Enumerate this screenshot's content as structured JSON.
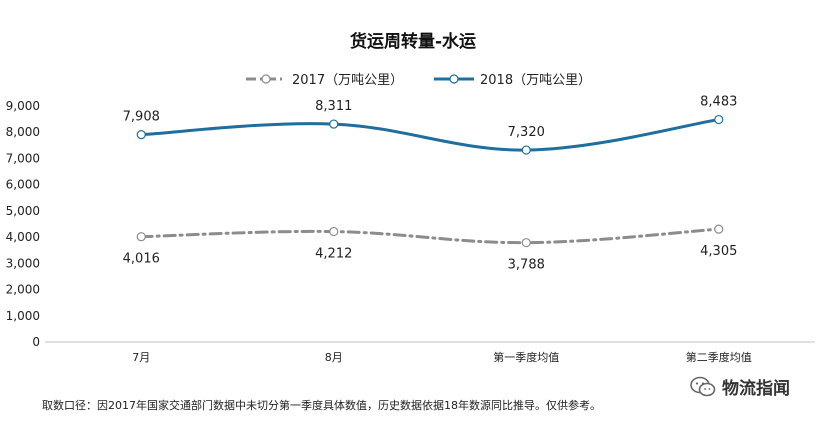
{
  "chart_data": {
    "type": "line",
    "title": "货运周转量-水运",
    "categories": [
      "7月",
      "8月",
      "第一季度均值",
      "第二季度均值"
    ],
    "series": [
      {
        "name": "2017（万吨公里）",
        "values": [
          4016,
          4212,
          3788,
          4305
        ],
        "color": "#8c8c8c",
        "style": "dash-dot",
        "labels": [
          "4,016",
          "4,212",
          "3,788",
          "4,305"
        ]
      },
      {
        "name": "2018（万吨公里）",
        "values": [
          7908,
          8311,
          7320,
          8483
        ],
        "color": "#1f6f9e",
        "style": "solid",
        "labels": [
          "7,908",
          "8,311",
          "7,320",
          "8,483"
        ]
      }
    ],
    "yticks": [
      "0",
      "1,000",
      "2,000",
      "3,000",
      "4,000",
      "5,000",
      "6,000",
      "7,000",
      "8,000",
      "9,000"
    ],
    "ylim": [
      0,
      9000
    ],
    "grid": false,
    "legend_position": "top-center"
  },
  "footnote": "取数口径：因2017年国家交通部门数据中未切分第一季度具体数值，历史数据依据18年数源同比推导。仅供参考。",
  "watermark": {
    "text": "物流指闻",
    "icon": "wechat-icon"
  }
}
